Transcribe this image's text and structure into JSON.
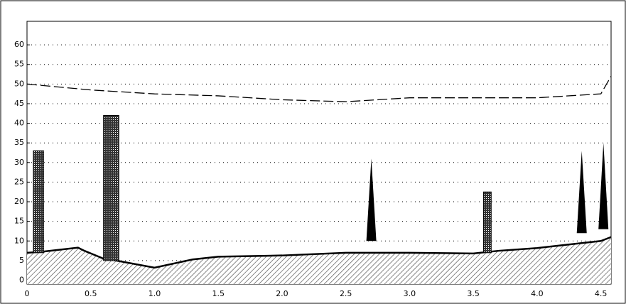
{
  "chart_data": {
    "type": "profile",
    "xlim": [
      0,
      4.58
    ],
    "ylim": [
      -1,
      66
    ],
    "xticks": [
      0,
      0.5,
      {
        "value": 1,
        "label": "1.0"
      },
      1.5,
      {
        "value": 2,
        "label": "2.0"
      },
      2.5,
      {
        "value": 3,
        "label": "3.0"
      },
      3.5,
      {
        "value": 4,
        "label": "4.0"
      },
      4.5
    ],
    "yticks": [
      0,
      5,
      10,
      15,
      20,
      25,
      30,
      35,
      40,
      45,
      50,
      55,
      60
    ],
    "grid": true,
    "terrain": {
      "color": "#000000",
      "x": [
        0,
        0.1,
        0.4,
        0.45,
        0.6,
        0.7,
        1.0,
        1.3,
        1.5,
        2.0,
        2.5,
        3.0,
        3.5,
        3.7,
        4.0,
        4.5,
        4.58
      ],
      "values": [
        7,
        7.2,
        8.3,
        7.5,
        5.5,
        5,
        3.2,
        5.3,
        6,
        6.3,
        7,
        7,
        6.8,
        7.5,
        8.2,
        10,
        11
      ]
    },
    "columns": [
      {
        "x0": 0.05,
        "x1": 0.13,
        "bottom": 7,
        "top": 33
      },
      {
        "x0": 0.6,
        "x1": 0.72,
        "bottom": 5,
        "top": 42
      },
      {
        "x0": 3.58,
        "x1": 3.64,
        "bottom": 7,
        "top": 22.5
      }
    ],
    "spikes": [
      {
        "x": 2.7,
        "bottom": 10,
        "top": 31
      },
      {
        "x": 4.35,
        "bottom": 12,
        "top": 33
      },
      {
        "x": 4.52,
        "bottom": 13,
        "top": 35
      }
    ],
    "level": {
      "color": "#000000",
      "x": [
        0,
        0.5,
        1.0,
        1.5,
        2.0,
        2.5,
        3.0,
        3.5,
        4.0,
        4.5,
        4.58
      ],
      "values": [
        50,
        48.5,
        47.5,
        47,
        46,
        45.5,
        46.5,
        46.5,
        46.5,
        47.5,
        52
      ]
    }
  }
}
